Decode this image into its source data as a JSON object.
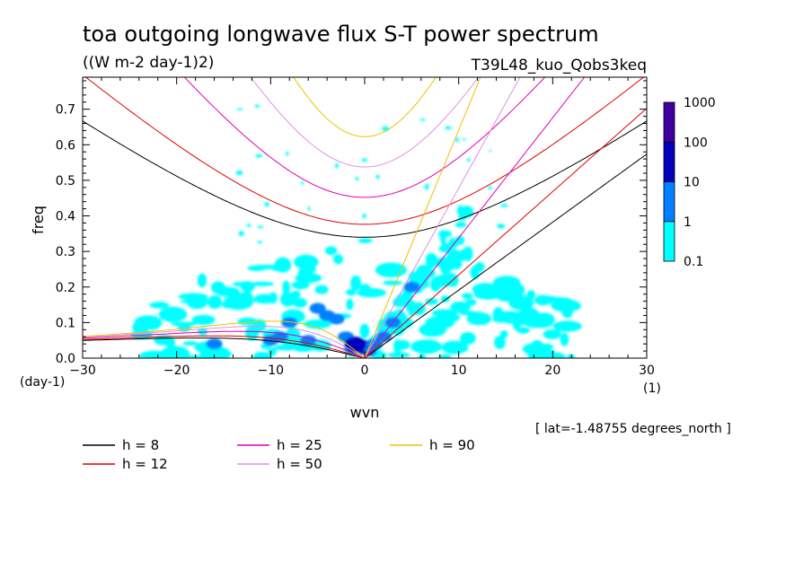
{
  "chart_data": {
    "type": "heatmap",
    "title": "toa outgoing longwave flux S-T power spectrum",
    "subtitle": "((W m-2 day-1)2)",
    "experiment": "T39L48_kuo_Qobs3keq",
    "xlabel": "wvn",
    "ylabel": "freq",
    "y_unit": "(day-1)",
    "x_unit": "(1)",
    "xlim": [
      -30,
      30
    ],
    "ylim": [
      0,
      0.79
    ],
    "x_ticks": [
      "-30",
      "-20",
      "-10",
      "0",
      "10",
      "20",
      "30"
    ],
    "y_ticks": [
      "0.0",
      "0.1",
      "0.2",
      "0.3",
      "0.4",
      "0.5",
      "0.6",
      "0.7"
    ],
    "annotation": "[ lat=-1.48755 degrees_north ]",
    "colorbar": {
      "labels": [
        "0.1",
        "1",
        "10",
        "100",
        "1000"
      ],
      "colors": [
        "#00ffff",
        "#0080ff",
        "#0000c0",
        "#4000a0"
      ]
    },
    "dispersion_curves": [
      {
        "label": "h =  8",
        "h": 8,
        "color": "#000000"
      },
      {
        "label": "h = 12",
        "h": 12,
        "color": "#e00000"
      },
      {
        "label": "h = 25",
        "h": 25,
        "color": "#e000b0"
      },
      {
        "label": "h = 50",
        "h": 50,
        "color": "#e090e0"
      },
      {
        "label": "h = 90",
        "h": 90,
        "color": "#f0c000"
      }
    ],
    "spectrum_blobs": [
      {
        "wvn": -4,
        "freq": 0.12,
        "level": 1
      },
      {
        "wvn": -3,
        "freq": 0.11,
        "level": 1
      },
      {
        "wvn": -2,
        "freq": 0.06,
        "level": 1
      },
      {
        "wvn": -1,
        "freq": 0.04,
        "level": 2
      },
      {
        "wvn": 0,
        "freq": 0.03,
        "level": 2
      },
      {
        "wvn": 1,
        "freq": 0.04,
        "level": 1
      },
      {
        "wvn": 2,
        "freq": 0.06,
        "level": 1
      },
      {
        "wvn": -6,
        "freq": 0.05,
        "level": 1
      },
      {
        "wvn": -10,
        "freq": 0.05,
        "level": 1
      },
      {
        "wvn": -16,
        "freq": 0.04,
        "level": 1
      },
      {
        "wvn": 3,
        "freq": 0.1,
        "level": 1
      },
      {
        "wvn": 5,
        "freq": 0.2,
        "level": 1
      },
      {
        "wvn": -5,
        "freq": 0.14,
        "level": 1
      },
      {
        "wvn": -8,
        "freq": 0.1,
        "level": 1
      },
      {
        "wvn": -9,
        "freq": 0.06,
        "level": 1
      }
    ]
  },
  "legend_items": [
    {
      "label": "h =  8",
      "color": "#000000"
    },
    {
      "label": "h = 12",
      "color": "#e00000"
    },
    {
      "label": "h = 25",
      "color": "#e000b0"
    },
    {
      "label": "h = 50",
      "color": "#e090e0"
    },
    {
      "label": "h = 90",
      "color": "#f0c000"
    }
  ]
}
